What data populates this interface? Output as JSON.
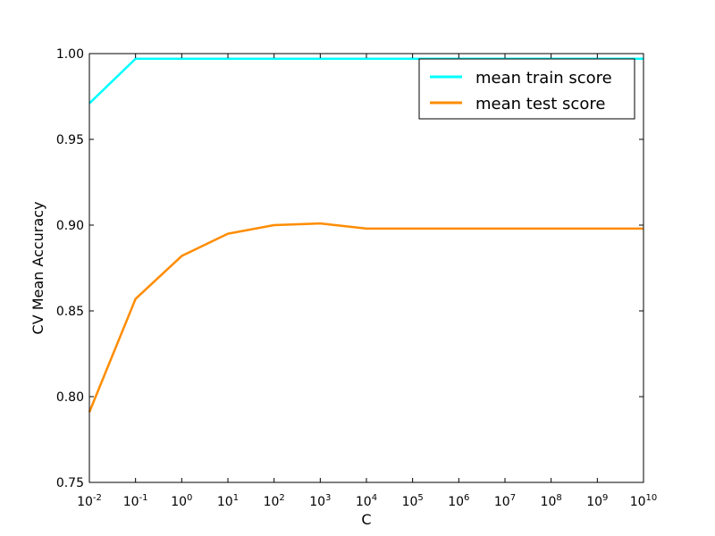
{
  "chart_data": {
    "type": "line",
    "title": "",
    "xlabel": "C",
    "ylabel": "CV Mean Accuracy",
    "x_scale": "log",
    "x": [
      0.01,
      0.1,
      1,
      10,
      100,
      1000,
      10000,
      100000,
      1000000,
      10000000,
      100000000,
      1000000000,
      10000000000
    ],
    "xlim": [
      0.01,
      10000000000
    ],
    "ylim": [
      0.75,
      1.0
    ],
    "x_ticks": [
      {
        "base": "10",
        "exp": "-2",
        "value": 0.01
      },
      {
        "base": "10",
        "exp": "-1",
        "value": 0.1
      },
      {
        "base": "10",
        "exp": "0",
        "value": 1
      },
      {
        "base": "10",
        "exp": "1",
        "value": 10
      },
      {
        "base": "10",
        "exp": "2",
        "value": 100
      },
      {
        "base": "10",
        "exp": "3",
        "value": 1000
      },
      {
        "base": "10",
        "exp": "4",
        "value": 10000
      },
      {
        "base": "10",
        "exp": "5",
        "value": 100000
      },
      {
        "base": "10",
        "exp": "6",
        "value": 1000000
      },
      {
        "base": "10",
        "exp": "7",
        "value": 10000000
      },
      {
        "base": "10",
        "exp": "8",
        "value": 100000000
      },
      {
        "base": "10",
        "exp": "9",
        "value": 1000000000
      },
      {
        "base": "10",
        "exp": "10",
        "value": 10000000000
      }
    ],
    "y_ticks": [
      {
        "label": "0.75",
        "value": 0.75
      },
      {
        "label": "0.80",
        "value": 0.8
      },
      {
        "label": "0.85",
        "value": 0.85
      },
      {
        "label": "0.90",
        "value": 0.9
      },
      {
        "label": "0.95",
        "value": 0.95
      },
      {
        "label": "1.00",
        "value": 1.0
      }
    ],
    "grid": false,
    "legend_position": "top-right",
    "series": [
      {
        "name": "mean train score",
        "color": "#00ffff",
        "values": [
          0.971,
          0.997,
          0.997,
          0.997,
          0.997,
          0.997,
          0.997,
          0.997,
          0.997,
          0.997,
          0.997,
          0.997,
          0.997
        ]
      },
      {
        "name": "mean test score",
        "color": "#ff8c00",
        "values": [
          0.791,
          0.857,
          0.882,
          0.895,
          0.9,
          0.901,
          0.898,
          0.898,
          0.898,
          0.898,
          0.898,
          0.898,
          0.898
        ]
      }
    ]
  }
}
